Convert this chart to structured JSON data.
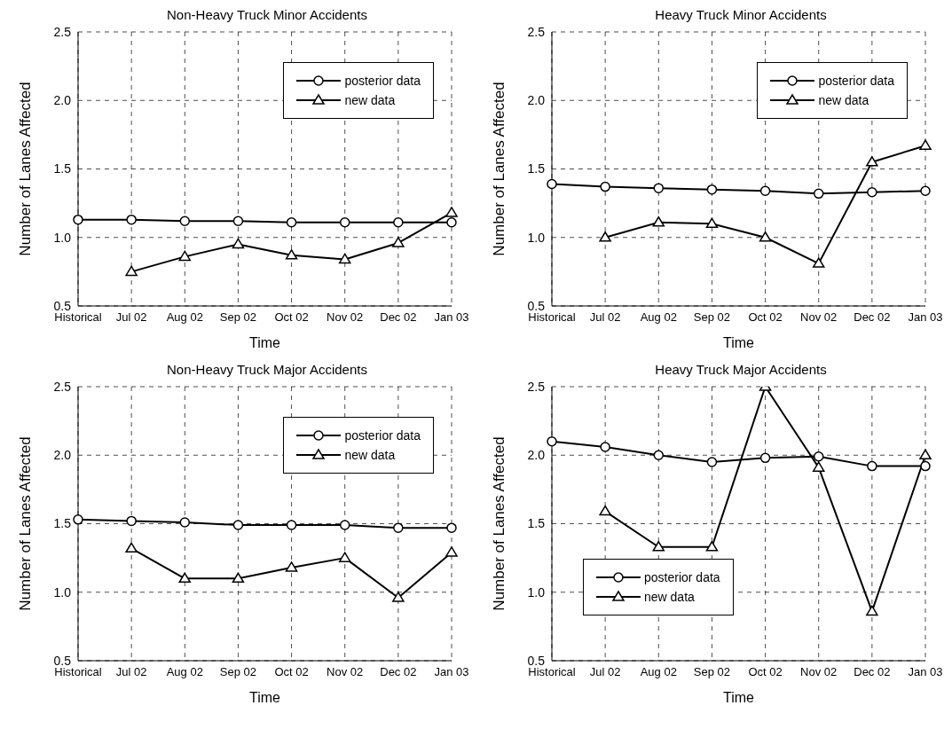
{
  "chart_data": [
    {
      "type": "line",
      "title": "Non-Heavy Truck Minor Accidents",
      "xlabel": "Time",
      "ylabel": "Number of Lanes Affected",
      "categories": [
        "Historical",
        "Jul 02",
        "Aug 02",
        "Sep 02",
        "Oct 02",
        "Nov 02",
        "Dec 02",
        "Jan 03"
      ],
      "ylim": [
        0.5,
        2.5
      ],
      "yticks": [
        {
          "value": 0.5,
          "label": "0.5"
        },
        {
          "value": 1,
          "label": "1.0"
        },
        {
          "value": 1.5,
          "label": "1.5"
        },
        {
          "value": 2,
          "label": "2.0"
        },
        {
          "value": 2.5,
          "label": "2.5"
        }
      ],
      "grid": true,
      "legend": "top right",
      "series": [
        {
          "name": "posterior data",
          "color": "#000000",
          "marker": "circle",
          "values": [
            1.13,
            1.13,
            1.12,
            1.12,
            1.11,
            1.11,
            1.11,
            1.11
          ]
        },
        {
          "name": "new data",
          "color": "#000000",
          "marker": "triangle",
          "values": [
            null,
            0.75,
            0.86,
            0.95,
            0.87,
            0.84,
            0.96,
            1.18
          ]
        }
      ]
    },
    {
      "type": "line",
      "title": "Heavy Truck Minor Accidents",
      "xlabel": "Time",
      "ylabel": "Number of Lanes Affected",
      "categories": [
        "Historical",
        "Jul 02",
        "Aug 02",
        "Sep 02",
        "Oct 02",
        "Nov 02",
        "Dec 02",
        "Jan 03"
      ],
      "ylim": [
        0.5,
        2.5
      ],
      "yticks": [
        {
          "value": 0.5,
          "label": "0.5"
        },
        {
          "value": 1,
          "label": "1.0"
        },
        {
          "value": 1.5,
          "label": "1.5"
        },
        {
          "value": 2,
          "label": "2.0"
        },
        {
          "value": 2.5,
          "label": "2.5"
        }
      ],
      "grid": true,
      "legend": "top right",
      "series": [
        {
          "name": "posterior data",
          "color": "#000000",
          "marker": "circle",
          "values": [
            1.39,
            1.37,
            1.36,
            1.35,
            1.34,
            1.32,
            1.33,
            1.34
          ]
        },
        {
          "name": "new data",
          "color": "#000000",
          "marker": "triangle",
          "values": [
            null,
            1.0,
            1.11,
            1.1,
            1.0,
            0.81,
            1.55,
            1.67
          ]
        }
      ]
    },
    {
      "type": "line",
      "title": "Non-Heavy Truck Major Accidents",
      "xlabel": "Time",
      "ylabel": "Number of Lanes Affected",
      "categories": [
        "Historical",
        "Jul 02",
        "Aug 02",
        "Sep 02",
        "Oct 02",
        "Nov 02",
        "Dec 02",
        "Jan 03"
      ],
      "ylim": [
        0.5,
        2.5
      ],
      "yticks": [
        {
          "value": 0.5,
          "label": "0.5"
        },
        {
          "value": 1,
          "label": "1.0"
        },
        {
          "value": 1.5,
          "label": "1.5"
        },
        {
          "value": 2,
          "label": "2.0"
        },
        {
          "value": 2.5,
          "label": "2.5"
        }
      ],
      "grid": true,
      "legend": "top right",
      "series": [
        {
          "name": "posterior data",
          "color": "#000000",
          "marker": "circle",
          "values": [
            1.53,
            1.52,
            1.51,
            1.49,
            1.49,
            1.49,
            1.47,
            1.47
          ]
        },
        {
          "name": "new data",
          "color": "#000000",
          "marker": "triangle",
          "values": [
            null,
            1.32,
            1.1,
            1.1,
            1.18,
            1.25,
            0.96,
            1.29
          ]
        }
      ]
    },
    {
      "type": "line",
      "title": "Heavy Truck Major Accidents",
      "xlabel": "Time",
      "ylabel": "Number of Lanes Affected",
      "categories": [
        "Historical",
        "Jul 02",
        "Aug 02",
        "Sep 02",
        "Oct 02",
        "Nov 02",
        "Dec 02",
        "Jan 03"
      ],
      "ylim": [
        0.5,
        2.5
      ],
      "yticks": [
        {
          "value": 0.5,
          "label": "0.5"
        },
        {
          "value": 1,
          "label": "1.0"
        },
        {
          "value": 1.5,
          "label": "1.5"
        },
        {
          "value": 2,
          "label": "2.0"
        },
        {
          "value": 2.5,
          "label": "2.5"
        }
      ],
      "grid": true,
      "legend": "bottom left",
      "series": [
        {
          "name": "posterior data",
          "color": "#000000",
          "marker": "circle",
          "values": [
            2.1,
            2.06,
            2.0,
            1.95,
            1.98,
            1.99,
            1.92,
            1.92
          ]
        },
        {
          "name": "new data",
          "color": "#000000",
          "marker": "triangle",
          "values": [
            null,
            1.59,
            1.33,
            1.33,
            2.5,
            1.91,
            0.86,
            2.0
          ]
        }
      ]
    }
  ]
}
